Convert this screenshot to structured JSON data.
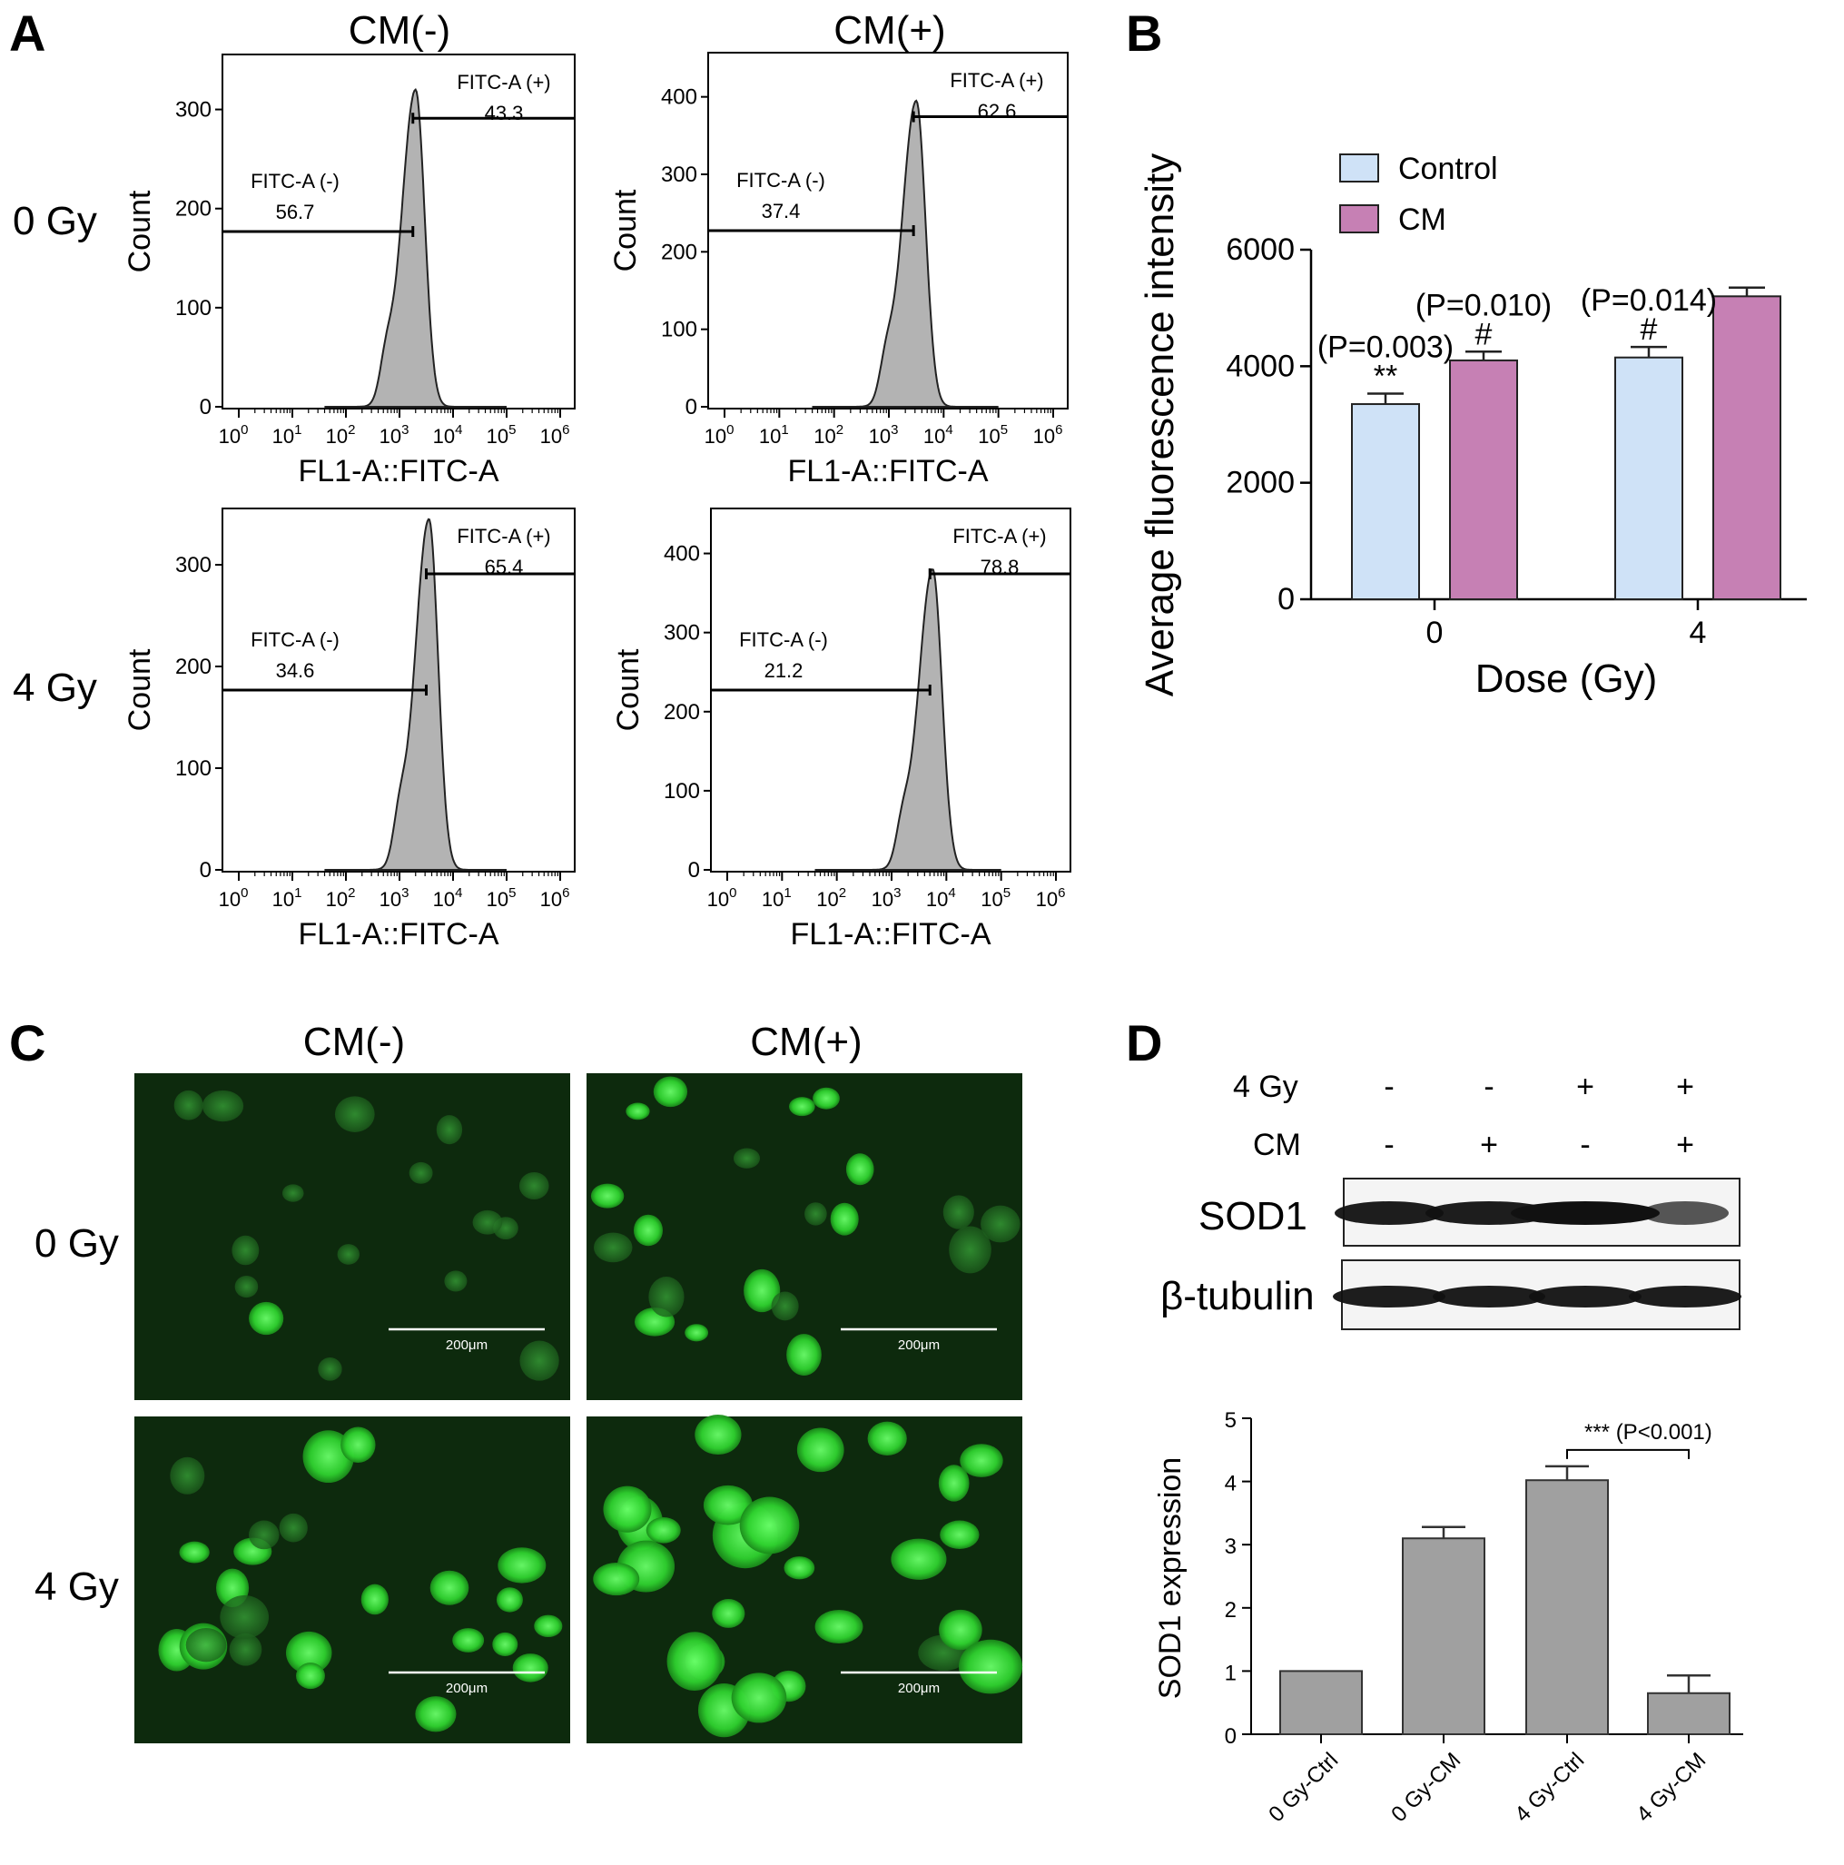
{
  "panels": {
    "A": {
      "letter": "A",
      "col_headers": [
        "CM(-)",
        "CM(+)"
      ],
      "row_labels": [
        "0 Gy",
        "4 Gy"
      ],
      "y_axis_label": "Count",
      "x_axis_label": "FL1-A::FITC-A",
      "gate_neg_label": "FITC-A (-)",
      "gate_pos_label": "FITC-A (+)",
      "x_ticks": [
        "10",
        "10",
        "10",
        "10",
        "10",
        "10",
        "10"
      ],
      "x_tick_exponents": [
        "0",
        "1",
        "2",
        "3",
        "4",
        "5",
        "6"
      ]
    },
    "B": {
      "letter": "B"
    },
    "C": {
      "letter": "C",
      "col_headers": [
        "CM(-)",
        "CM(+)"
      ],
      "row_labels": [
        "0 Gy",
        "4 Gy"
      ],
      "scale_bar_label": "200μm"
    },
    "D": {
      "letter": "D",
      "row_labels": [
        "4 Gy",
        "CM"
      ],
      "lane_signs": [
        [
          "-",
          "-",
          "+",
          "+"
        ],
        [
          "-",
          "+",
          "-",
          "+"
        ]
      ],
      "band_labels": [
        "SOD1",
        "β-tubulin"
      ]
    }
  },
  "chart_data": [
    {
      "id": "A-0Gy-CM-",
      "type": "histogram",
      "xlabel": "FL1-A::FITC-A",
      "ylabel": "Count",
      "xscale": "log",
      "xlim": [
        1,
        1000000
      ],
      "yticks": [
        0,
        100,
        200,
        300
      ],
      "ylim": [
        0,
        350
      ],
      "peak": {
        "log10_x": 3.3,
        "count": 320
      },
      "gates": [
        {
          "label": "FITC-A (-)",
          "value": "56.7"
        },
        {
          "label": "FITC-A (+)",
          "value": "43.3"
        }
      ]
    },
    {
      "id": "A-0Gy-CM+",
      "type": "histogram",
      "xlabel": "FL1-A::FITC-A",
      "ylabel": "Count",
      "xscale": "log",
      "xlim": [
        1,
        1000000
      ],
      "yticks": [
        0,
        100,
        200,
        300,
        400
      ],
      "ylim": [
        0,
        450
      ],
      "peak": {
        "log10_x": 3.5,
        "count": 395
      },
      "gates": [
        {
          "label": "FITC-A (-)",
          "value": "37.4"
        },
        {
          "label": "FITC-A (+)",
          "value": "62.6"
        }
      ]
    },
    {
      "id": "A-4Gy-CM-",
      "type": "histogram",
      "xlabel": "FL1-A::FITC-A",
      "ylabel": "Count",
      "xscale": "log",
      "xlim": [
        1,
        1000000
      ],
      "yticks": [
        0,
        100,
        200,
        300
      ],
      "ylim": [
        0,
        350
      ],
      "peak": {
        "log10_x": 3.55,
        "count": 345
      },
      "gates": [
        {
          "label": "FITC-A (-)",
          "value": "34.6"
        },
        {
          "label": "FITC-A (+)",
          "value": "65.4"
        }
      ]
    },
    {
      "id": "A-4Gy-CM+",
      "type": "histogram",
      "xlabel": "FL1-A::FITC-A",
      "ylabel": "Count",
      "xscale": "log",
      "xlim": [
        1,
        1000000
      ],
      "yticks": [
        0,
        100,
        200,
        300,
        400
      ],
      "ylim": [
        0,
        450
      ],
      "peak": {
        "log10_x": 3.75,
        "count": 380
      },
      "gates": [
        {
          "label": "FITC-A (-)",
          "value": "21.2"
        },
        {
          "label": "FITC-A (+)",
          "value": "78.8"
        }
      ]
    },
    {
      "id": "B",
      "type": "bar",
      "xlabel": "Dose (Gy)",
      "ylabel": "Average fluorescence intensity",
      "categories": [
        "0",
        "4"
      ],
      "ylim": [
        0,
        6000
      ],
      "yticks": [
        0,
        2000,
        4000,
        6000
      ],
      "legend": "top-left",
      "series": [
        {
          "name": "Control",
          "color": "#cfe2f7",
          "values": [
            3350,
            4150
          ],
          "errors": [
            180,
            180
          ]
        },
        {
          "name": "CM",
          "color": "#c680b4",
          "values": [
            4100,
            5200
          ],
          "errors": [
            150,
            150
          ]
        }
      ],
      "annotations": [
        {
          "p": "(P=0.003)",
          "mark": "**"
        },
        {
          "p": "(P=0.010)",
          "mark": "#"
        },
        {
          "p": "(P=0.014)",
          "mark": "#"
        }
      ]
    },
    {
      "id": "D",
      "type": "bar",
      "xlabel": "",
      "ylabel": "SOD1 expression",
      "categories": [
        "0 Gy-Ctrl",
        "0 Gy-CM",
        "4 Gy-Ctrl",
        "4 Gy-CM"
      ],
      "ylim": [
        0,
        5
      ],
      "yticks": [
        0,
        1,
        2,
        3,
        4,
        5
      ],
      "series": [
        {
          "color": "#a0a0a0",
          "values": [
            1.0,
            3.1,
            4.02,
            0.65
          ],
          "errors": [
            0,
            0.18,
            0.22,
            0.28
          ]
        }
      ],
      "annotation": "*** (P<0.001)"
    }
  ]
}
